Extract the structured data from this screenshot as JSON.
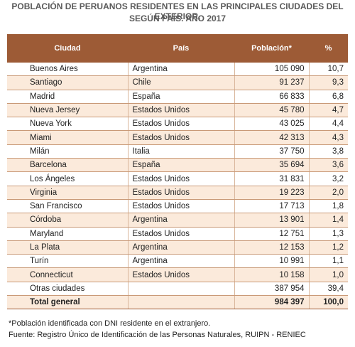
{
  "title": {
    "lines": [
      "POBLACIÓN DE PERUANOS RESIDENTES EN LAS PRINCIPALES CIUDADES DEL EXTERIOR,",
      "SEGÚN PAÍS. AÑO 2017"
    ]
  },
  "table": {
    "header": [
      "Ciudad",
      "País",
      "Población*",
      "%"
    ],
    "rows": [
      [
        "Buenos Aires",
        "Argentina",
        "105 090",
        "10,7"
      ],
      [
        "Santiago",
        "Chile",
        "91 237",
        "9,3"
      ],
      [
        "Madrid",
        "España",
        "66 833",
        "6,8"
      ],
      [
        "Nueva Jersey",
        "Estados Unidos",
        "45 780",
        "4,7"
      ],
      [
        "Nueva York",
        "Estados Unidos",
        "43 025",
        "4,4"
      ],
      [
        "Miami",
        "Estados Unidos",
        "42 313",
        "4,3"
      ],
      [
        "Milán",
        "Italia",
        "37 750",
        "3,8"
      ],
      [
        "Barcelona",
        "España",
        "35 694",
        "3,6"
      ],
      [
        "Los Ángeles",
        "Estados Unidos",
        "31 831",
        "3,2"
      ],
      [
        "Virginia",
        "Estados Unidos",
        "19 223",
        "2,0"
      ],
      [
        "San Francisco",
        "Estados Unidos",
        "17 713",
        "1,8"
      ],
      [
        "Córdoba",
        "Argentina",
        "13 901",
        "1,4"
      ],
      [
        "Maryland",
        "Estados Unidos",
        "12 751",
        "1,3"
      ],
      [
        "La Plata",
        "Argentina",
        "12 153",
        "1,2"
      ],
      [
        "Turín",
        "Argentina",
        "10 991",
        "1,1"
      ],
      [
        "Connecticut",
        "Estados Unidos",
        "10 158",
        "1,0"
      ],
      [
        "Otras ciudades",
        null,
        "387 954",
        "39,4"
      ]
    ],
    "total": [
      "Total general",
      null,
      "984 397",
      "100,0"
    ]
  },
  "footnotes": [
    "*Población identificada con DNI residente en el extranjero.",
    "Fuente: Registro Único de Identificación de las Personas Naturales, RUIPN - RENIEC"
  ]
}
